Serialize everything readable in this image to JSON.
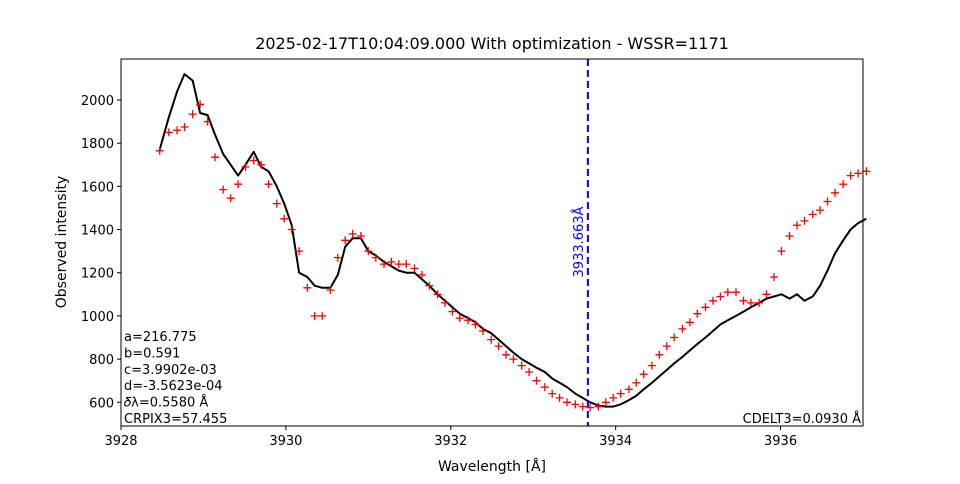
{
  "chart_data": {
    "type": "line",
    "title": "2025-02-17T10:04:09.000 With optimization - WSSR=1171",
    "xlabel": "Wavelength [Å]",
    "ylabel": "Observed intensity",
    "xlim": [
      3928.0,
      3937.0
    ],
    "ylim": [
      490,
      2190
    ],
    "x_ticks": [
      3928,
      3930,
      3932,
      3934,
      3936
    ],
    "y_ticks": [
      600,
      800,
      1000,
      1200,
      1400,
      1600,
      1800,
      2000
    ],
    "series": [
      {
        "style": "line",
        "color": "#000000",
        "x": [
          3928.47,
          3928.58,
          3928.68,
          3928.77,
          3928.87,
          3928.96,
          3929.05,
          3929.14,
          3929.24,
          3929.33,
          3929.42,
          3929.51,
          3929.61,
          3929.7,
          3929.79,
          3929.89,
          3929.98,
          3930.07,
          3930.16,
          3930.26,
          3930.35,
          3930.44,
          3930.54,
          3930.63,
          3930.72,
          3930.81,
          3930.91,
          3931.0,
          3931.09,
          3931.19,
          3931.28,
          3931.37,
          3931.46,
          3931.56,
          3931.65,
          3931.74,
          3931.84,
          3931.93,
          3932.02,
          3932.11,
          3932.21,
          3932.3,
          3932.39,
          3932.49,
          3932.58,
          3932.67,
          3932.76,
          3932.86,
          3932.95,
          3933.04,
          3933.14,
          3933.23,
          3933.32,
          3933.41,
          3933.51,
          3933.6,
          3933.69,
          3933.79,
          3933.88,
          3933.97,
          3934.06,
          3934.16,
          3934.25,
          3934.34,
          3934.44,
          3934.53,
          3934.62,
          3934.71,
          3934.81,
          3934.9,
          3934.99,
          3935.09,
          3935.18,
          3935.27,
          3935.36,
          3935.46,
          3935.55,
          3935.64,
          3935.74,
          3935.83,
          3935.92,
          3936.01,
          3936.11,
          3936.2,
          3936.29,
          3936.39,
          3936.48,
          3936.57,
          3936.66,
          3936.76,
          3936.85,
          3936.94,
          3937.04
        ],
        "y": [
          1770,
          1920,
          2040,
          2120,
          2090,
          1940,
          1930,
          1840,
          1750,
          1700,
          1650,
          1700,
          1760,
          1690,
          1670,
          1600,
          1520,
          1420,
          1200,
          1180,
          1140,
          1130,
          1130,
          1190,
          1320,
          1360,
          1360,
          1300,
          1280,
          1250,
          1230,
          1210,
          1200,
          1200,
          1170,
          1140,
          1100,
          1070,
          1040,
          1010,
          990,
          970,
          940,
          920,
          890,
          860,
          830,
          800,
          780,
          760,
          740,
          710,
          690,
          670,
          640,
          620,
          600,
          585,
          580,
          580,
          590,
          610,
          630,
          660,
          690,
          720,
          750,
          780,
          810,
          840,
          870,
          900,
          930,
          960,
          980,
          1000,
          1020,
          1040,
          1060,
          1080,
          1090,
          1100,
          1080,
          1100,
          1070,
          1090,
          1140,
          1210,
          1290,
          1350,
          1400,
          1430,
          1450
        ]
      },
      {
        "style": "plus",
        "color": "#ff0000",
        "x": [
          3928.47,
          3928.58,
          3928.68,
          3928.77,
          3928.87,
          3928.96,
          3929.05,
          3929.14,
          3929.24,
          3929.33,
          3929.42,
          3929.51,
          3929.61,
          3929.7,
          3929.79,
          3929.89,
          3929.98,
          3930.07,
          3930.16,
          3930.26,
          3930.35,
          3930.44,
          3930.54,
          3930.63,
          3930.72,
          3930.81,
          3930.91,
          3931.0,
          3931.09,
          3931.19,
          3931.28,
          3931.37,
          3931.46,
          3931.56,
          3931.65,
          3931.74,
          3931.84,
          3931.93,
          3932.02,
          3932.11,
          3932.21,
          3932.3,
          3932.39,
          3932.49,
          3932.58,
          3932.67,
          3932.76,
          3932.86,
          3932.95,
          3933.04,
          3933.14,
          3933.23,
          3933.32,
          3933.41,
          3933.51,
          3933.6,
          3933.69,
          3933.79,
          3933.88,
          3933.97,
          3934.06,
          3934.16,
          3934.25,
          3934.34,
          3934.44,
          3934.53,
          3934.62,
          3934.71,
          3934.81,
          3934.9,
          3934.99,
          3935.09,
          3935.18,
          3935.27,
          3935.36,
          3935.46,
          3935.55,
          3935.64,
          3935.74,
          3935.83,
          3935.92,
          3936.01,
          3936.11,
          3936.2,
          3936.29,
          3936.39,
          3936.48,
          3936.57,
          3936.66,
          3936.76,
          3936.85,
          3936.94,
          3937.04
        ],
        "y": [
          1765,
          1850,
          1860,
          1875,
          1935,
          1980,
          1900,
          1735,
          1585,
          1545,
          1610,
          1690,
          1720,
          1700,
          1610,
          1520,
          1450,
          1400,
          1300,
          1130,
          1000,
          1000,
          1120,
          1270,
          1350,
          1380,
          1370,
          1300,
          1270,
          1240,
          1250,
          1240,
          1240,
          1220,
          1190,
          1140,
          1100,
          1060,
          1020,
          990,
          980,
          960,
          930,
          890,
          860,
          820,
          800,
          770,
          740,
          700,
          670,
          640,
          620,
          600,
          590,
          580,
          575,
          580,
          600,
          620,
          640,
          660,
          690,
          730,
          770,
          820,
          860,
          900,
          940,
          970,
          1010,
          1040,
          1070,
          1090,
          1110,
          1110,
          1070,
          1060,
          1060,
          1100,
          1180,
          1300,
          1370,
          1420,
          1440,
          1470,
          1490,
          1530,
          1570,
          1610,
          1650,
          1660,
          1670
        ]
      }
    ],
    "vline": {
      "x": 3933.663,
      "label": "3933.663Å",
      "color": "#0000ff",
      "style": "dashed"
    },
    "annotations_left": [
      "a=216.775",
      "b=0.591",
      "c=3.9902e-03",
      "d=-3.5623e-04",
      "𝛿λ=0.5580 Å",
      "CRPIX3=57.455"
    ],
    "annotation_right": "CDELT3=0.0930 Å",
    "legend": "none",
    "grid": false
  }
}
